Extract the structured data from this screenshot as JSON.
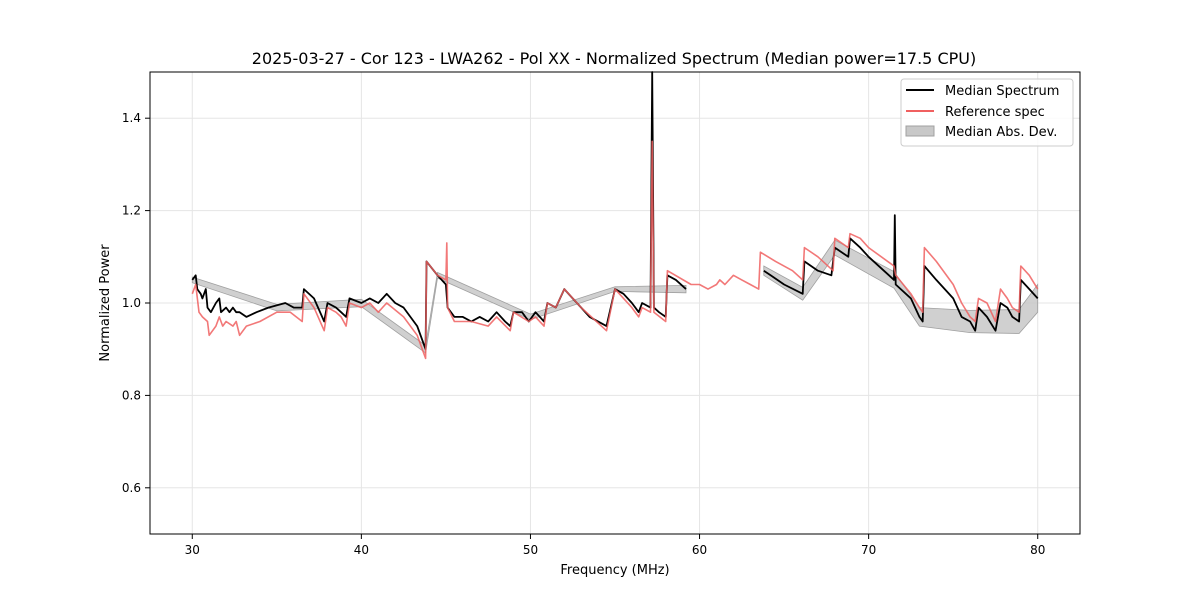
{
  "chart_data": {
    "type": "line",
    "title": "2025-03-27 - Cor 123 - LWA262 - Pol XX - Normalized Spectrum (Median power=17.5 CPU)",
    "xlabel": "Frequency (MHz)",
    "ylabel": "Normalized Power",
    "xlim": [
      27.5,
      82.5
    ],
    "ylim": [
      0.5,
      1.5
    ],
    "x_ticks": [
      30,
      40,
      50,
      60,
      70,
      80
    ],
    "y_ticks": [
      0.6,
      0.8,
      1.0,
      1.2,
      1.4
    ],
    "x_tick_labels": [
      "30",
      "40",
      "50",
      "60",
      "70",
      "80"
    ],
    "y_tick_labels": [
      "0.6",
      "0.8",
      "1.0",
      "1.2",
      "1.4"
    ],
    "grid": true,
    "legend_position": "top-right",
    "colors": {
      "median": "#000000",
      "reference": "#f06060",
      "mad_fill": "#c8c8c8",
      "mad_edge": "#a0a0a0",
      "overlap": "#8b0000"
    },
    "legend": [
      {
        "label": "Median Spectrum",
        "kind": "line",
        "color": "#000000"
      },
      {
        "label": "Reference spec",
        "kind": "line",
        "color": "#f06060"
      },
      {
        "label": "Median Abs. Dev.",
        "kind": "patch",
        "color": "#c8c8c8"
      }
    ],
    "series": [
      {
        "name": "Median Spectrum",
        "segments": [
          [
            [
              30.0,
              1.05
            ],
            [
              30.2,
              1.06
            ],
            [
              30.3,
              1.03
            ],
            [
              30.5,
              1.02
            ],
            [
              30.6,
              1.01
            ],
            [
              30.8,
              1.03
            ],
            [
              30.9,
              0.99
            ],
            [
              31.1,
              0.98
            ],
            [
              31.4,
              1.0
            ],
            [
              31.6,
              1.01
            ],
            [
              31.7,
              0.98
            ],
            [
              32.0,
              0.99
            ],
            [
              32.2,
              0.98
            ],
            [
              32.4,
              0.99
            ],
            [
              32.6,
              0.98
            ],
            [
              32.8,
              0.98
            ],
            [
              33.2,
              0.97
            ],
            [
              33.8,
              0.98
            ],
            [
              34.5,
              0.99
            ],
            [
              35.5,
              1.0
            ],
            [
              36.0,
              0.99
            ],
            [
              36.5,
              0.99
            ],
            [
              36.6,
              1.03
            ],
            [
              37.2,
              1.01
            ],
            [
              37.8,
              0.96
            ],
            [
              38.0,
              1.0
            ],
            [
              38.5,
              0.99
            ],
            [
              38.8,
              0.98
            ],
            [
              39.1,
              0.97
            ],
            [
              39.3,
              1.01
            ],
            [
              40.0,
              1.0
            ],
            [
              40.5,
              1.01
            ],
            [
              41.0,
              1.0
            ],
            [
              41.5,
              1.02
            ],
            [
              42.0,
              1.0
            ],
            [
              42.5,
              0.99
            ],
            [
              43.3,
              0.95
            ],
            [
              43.8,
              0.9
            ],
            [
              43.85,
              1.09
            ],
            [
              44.5,
              1.06
            ],
            [
              45.0,
              1.04
            ],
            [
              45.1,
              0.99
            ],
            [
              45.5,
              0.97
            ],
            [
              46.0,
              0.97
            ],
            [
              46.5,
              0.96
            ],
            [
              47.0,
              0.97
            ],
            [
              47.5,
              0.96
            ],
            [
              48.0,
              0.98
            ],
            [
              48.5,
              0.96
            ],
            [
              48.8,
              0.95
            ],
            [
              49.0,
              0.98
            ],
            [
              49.5,
              0.98
            ],
            [
              49.9,
              0.96
            ],
            [
              50.3,
              0.98
            ],
            [
              50.8,
              0.96
            ],
            [
              51.0,
              1.0
            ],
            [
              51.5,
              0.99
            ],
            [
              52.0,
              1.03
            ],
            [
              52.5,
              1.01
            ],
            [
              53.0,
              0.99
            ],
            [
              53.5,
              0.97
            ],
            [
              54.5,
              0.95
            ],
            [
              55.0,
              1.03
            ],
            [
              55.5,
              1.02
            ],
            [
              56.0,
              1.0
            ],
            [
              56.4,
              0.98
            ],
            [
              56.6,
              1.0
            ],
            [
              57.1,
              0.99
            ],
            [
              57.2,
              1.5
            ],
            [
              57.3,
              0.99
            ],
            [
              57.6,
              0.98
            ],
            [
              58.0,
              0.97
            ],
            [
              58.1,
              1.06
            ],
            [
              58.6,
              1.05
            ],
            [
              59.2,
              1.03
            ]
          ],
          [
            [
              63.8,
              1.07
            ],
            [
              64.2,
              1.06
            ],
            [
              65.0,
              1.04
            ],
            [
              66.1,
              1.02
            ],
            [
              66.2,
              1.09
            ],
            [
              67.0,
              1.07
            ],
            [
              67.8,
              1.06
            ],
            [
              68.0,
              1.12
            ],
            [
              68.8,
              1.1
            ],
            [
              68.9,
              1.14
            ],
            [
              69.5,
              1.12
            ],
            [
              70.0,
              1.1
            ],
            [
              71.5,
              1.05
            ],
            [
              71.55,
              1.19
            ],
            [
              71.6,
              1.04
            ],
            [
              72.5,
              1.01
            ],
            [
              73.0,
              0.97
            ],
            [
              73.2,
              0.96
            ],
            [
              73.3,
              1.08
            ],
            [
              74.0,
              1.05
            ],
            [
              75.0,
              1.01
            ],
            [
              75.5,
              0.97
            ],
            [
              76.0,
              0.96
            ],
            [
              76.3,
              0.94
            ],
            [
              76.5,
              0.99
            ],
            [
              77.0,
              0.97
            ],
            [
              77.5,
              0.94
            ],
            [
              77.8,
              1.0
            ],
            [
              78.2,
              0.99
            ],
            [
              78.5,
              0.97
            ],
            [
              78.9,
              0.96
            ],
            [
              79.0,
              1.05
            ],
            [
              79.5,
              1.03
            ],
            [
              80.0,
              1.01
            ]
          ]
        ]
      },
      {
        "name": "Reference spec",
        "segments": [
          [
            [
              30.0,
              1.02
            ],
            [
              30.2,
              1.04
            ],
            [
              30.4,
              0.98
            ],
            [
              30.6,
              0.97
            ],
            [
              30.9,
              0.96
            ],
            [
              31.0,
              0.93
            ],
            [
              31.4,
              0.95
            ],
            [
              31.6,
              0.97
            ],
            [
              31.8,
              0.95
            ],
            [
              32.0,
              0.96
            ],
            [
              32.4,
              0.95
            ],
            [
              32.6,
              0.96
            ],
            [
              32.8,
              0.93
            ],
            [
              33.2,
              0.95
            ],
            [
              34.0,
              0.96
            ],
            [
              35.0,
              0.98
            ],
            [
              35.8,
              0.98
            ],
            [
              36.5,
              0.96
            ],
            [
              36.6,
              1.02
            ],
            [
              37.2,
              0.99
            ],
            [
              37.8,
              0.94
            ],
            [
              38.0,
              0.99
            ],
            [
              38.5,
              0.98
            ],
            [
              38.8,
              0.97
            ],
            [
              39.1,
              0.95
            ],
            [
              39.3,
              1.0
            ],
            [
              40.0,
              0.99
            ],
            [
              40.5,
              1.0
            ],
            [
              41.0,
              0.98
            ],
            [
              41.5,
              1.0
            ],
            [
              42.5,
              0.97
            ],
            [
              43.3,
              0.93
            ],
            [
              43.8,
              0.88
            ],
            [
              43.85,
              1.09
            ],
            [
              44.5,
              1.06
            ],
            [
              45.0,
              1.05
            ],
            [
              45.05,
              1.13
            ],
            [
              45.1,
              0.99
            ],
            [
              45.5,
              0.96
            ],
            [
              46.5,
              0.96
            ],
            [
              47.5,
              0.95
            ],
            [
              48.0,
              0.97
            ],
            [
              48.8,
              0.94
            ],
            [
              49.0,
              0.98
            ],
            [
              49.9,
              0.96
            ],
            [
              50.3,
              0.97
            ],
            [
              50.8,
              0.95
            ],
            [
              51.0,
              1.0
            ],
            [
              51.5,
              0.99
            ],
            [
              52.0,
              1.03
            ],
            [
              53.0,
              0.99
            ],
            [
              54.5,
              0.94
            ],
            [
              55.0,
              1.03
            ],
            [
              56.0,
              0.99
            ],
            [
              56.4,
              0.97
            ],
            [
              56.6,
              0.99
            ],
            [
              57.1,
              0.98
            ],
            [
              57.2,
              1.35
            ],
            [
              57.3,
              0.98
            ],
            [
              58.0,
              0.96
            ],
            [
              58.1,
              1.07
            ],
            [
              59.5,
              1.04
            ],
            [
              60.0,
              1.04
            ],
            [
              60.5,
              1.03
            ],
            [
              61.0,
              1.04
            ],
            [
              61.2,
              1.05
            ],
            [
              61.5,
              1.04
            ],
            [
              62.0,
              1.06
            ],
            [
              62.5,
              1.05
            ],
            [
              63.0,
              1.04
            ],
            [
              63.5,
              1.03
            ],
            [
              63.6,
              1.11
            ],
            [
              64.5,
              1.09
            ],
            [
              65.5,
              1.07
            ],
            [
              66.1,
              1.05
            ],
            [
              66.2,
              1.12
            ],
            [
              67.0,
              1.1
            ],
            [
              67.9,
              1.07
            ],
            [
              68.0,
              1.14
            ],
            [
              68.8,
              1.12
            ],
            [
              68.9,
              1.15
            ],
            [
              69.5,
              1.14
            ],
            [
              70.0,
              1.12
            ],
            [
              71.5,
              1.08
            ],
            [
              71.6,
              1.06
            ],
            [
              72.5,
              1.02
            ],
            [
              73.0,
              0.99
            ],
            [
              73.2,
              0.98
            ],
            [
              73.3,
              1.12
            ],
            [
              74.0,
              1.09
            ],
            [
              75.0,
              1.04
            ],
            [
              75.5,
              1.0
            ],
            [
              76.0,
              0.97
            ],
            [
              76.3,
              0.96
            ],
            [
              76.5,
              1.01
            ],
            [
              77.0,
              1.0
            ],
            [
              77.5,
              0.96
            ],
            [
              77.8,
              1.03
            ],
            [
              78.2,
              1.01
            ],
            [
              78.5,
              0.99
            ],
            [
              78.9,
              0.98
            ],
            [
              79.0,
              1.08
            ],
            [
              79.5,
              1.06
            ],
            [
              80.0,
              1.03
            ]
          ]
        ]
      },
      {
        "name": "Median Abs. Dev.",
        "band": [
          [
            30.0,
            1.05,
            0.006
          ],
          [
            35.0,
            0.99,
            0.007
          ],
          [
            40.0,
            1.0,
            0.008
          ],
          [
            43.8,
            0.9,
            0.008
          ],
          [
            44.5,
            1.06,
            0.006
          ],
          [
            50.0,
            0.97,
            0.006
          ],
          [
            55.0,
            1.03,
            0.005
          ],
          [
            59.2,
            1.03,
            0.008
          ],
          [
            63.8,
            1.07,
            0.01
          ],
          [
            66.1,
            1.02,
            0.014
          ],
          [
            68.0,
            1.12,
            0.016
          ],
          [
            71.5,
            1.05,
            0.018
          ],
          [
            73.0,
            0.97,
            0.02
          ],
          [
            76.0,
            0.96,
            0.024
          ],
          [
            78.9,
            0.96,
            0.026
          ],
          [
            80.0,
            1.01,
            0.03
          ]
        ]
      }
    ]
  }
}
